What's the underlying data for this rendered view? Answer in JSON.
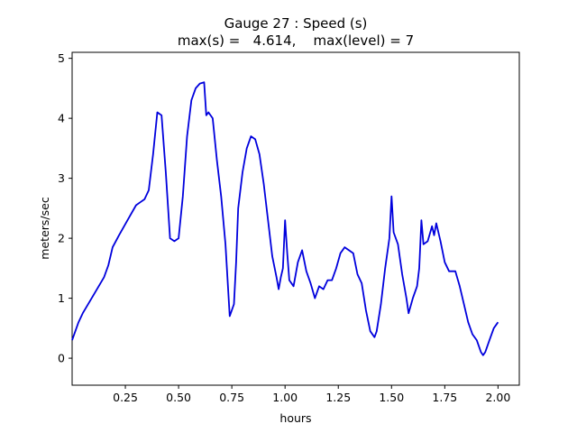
{
  "chart_data": {
    "type": "line",
    "title": "Gauge 27 : Speed (s)",
    "subtitle": "max(s) =   4.614,    max(level) = 7",
    "xlabel": "hours",
    "ylabel": "meters/sec",
    "xlim": [
      0.0,
      2.1
    ],
    "ylim": [
      -0.45,
      5.1
    ],
    "xticks": [
      0.25,
      0.5,
      0.75,
      1.0,
      1.25,
      1.5,
      1.75,
      2.0
    ],
    "xtick_labels": [
      "0.25",
      "0.50",
      "0.75",
      "1.00",
      "1.25",
      "1.50",
      "1.75",
      "2.00"
    ],
    "yticks": [
      0,
      1,
      2,
      3,
      4,
      5
    ],
    "ytick_labels": [
      "0",
      "1",
      "2",
      "3",
      "4",
      "5"
    ],
    "grid": false,
    "line_color": "#0000dd",
    "series": [
      {
        "x": [
          0.0,
          0.03,
          0.05,
          0.1,
          0.15,
          0.17,
          0.19,
          0.22,
          0.26,
          0.3,
          0.32,
          0.34,
          0.36,
          0.38,
          0.4,
          0.42,
          0.44,
          0.46,
          0.48,
          0.5,
          0.52,
          0.54,
          0.56,
          0.58,
          0.6,
          0.62,
          0.63,
          0.64,
          0.66,
          0.68,
          0.7,
          0.72,
          0.74,
          0.76,
          0.77,
          0.78,
          0.8,
          0.82,
          0.84,
          0.86,
          0.88,
          0.9,
          0.92,
          0.94,
          0.96,
          0.97,
          0.98,
          0.99,
          1.0,
          1.01,
          1.02,
          1.04,
          1.06,
          1.08,
          1.1,
          1.12,
          1.14,
          1.16,
          1.18,
          1.2,
          1.22,
          1.24,
          1.26,
          1.28,
          1.3,
          1.32,
          1.34,
          1.36,
          1.38,
          1.4,
          1.42,
          1.43,
          1.45,
          1.47,
          1.49,
          1.5,
          1.51,
          1.53,
          1.55,
          1.57,
          1.58,
          1.6,
          1.62,
          1.63,
          1.64,
          1.65,
          1.67,
          1.69,
          1.7,
          1.71,
          1.73,
          1.75,
          1.77,
          1.8,
          1.82,
          1.84,
          1.86,
          1.88,
          1.9,
          1.92,
          1.93,
          1.94,
          1.96,
          1.98,
          2.0
        ],
        "y": [
          0.3,
          0.6,
          0.75,
          1.05,
          1.35,
          1.55,
          1.85,
          2.05,
          2.3,
          2.55,
          2.6,
          2.65,
          2.8,
          3.4,
          4.1,
          4.05,
          3.1,
          2.0,
          1.95,
          2.0,
          2.7,
          3.7,
          4.3,
          4.5,
          4.58,
          4.6,
          4.05,
          4.1,
          4.0,
          3.3,
          2.7,
          1.9,
          0.7,
          0.9,
          1.6,
          2.5,
          3.1,
          3.5,
          3.7,
          3.65,
          3.4,
          2.9,
          2.3,
          1.7,
          1.35,
          1.15,
          1.35,
          1.5,
          2.3,
          1.75,
          1.3,
          1.2,
          1.6,
          1.8,
          1.45,
          1.25,
          1.0,
          1.2,
          1.15,
          1.3,
          1.3,
          1.5,
          1.75,
          1.85,
          1.8,
          1.75,
          1.4,
          1.25,
          0.8,
          0.45,
          0.35,
          0.45,
          0.9,
          1.5,
          2.0,
          2.7,
          2.1,
          1.9,
          1.4,
          1.0,
          0.75,
          1.0,
          1.2,
          1.5,
          2.3,
          1.9,
          1.95,
          2.2,
          2.05,
          2.25,
          1.95,
          1.6,
          1.45,
          1.45,
          1.2,
          0.9,
          0.6,
          0.4,
          0.3,
          0.1,
          0.05,
          0.1,
          0.3,
          0.5,
          0.6
        ]
      }
    ]
  }
}
